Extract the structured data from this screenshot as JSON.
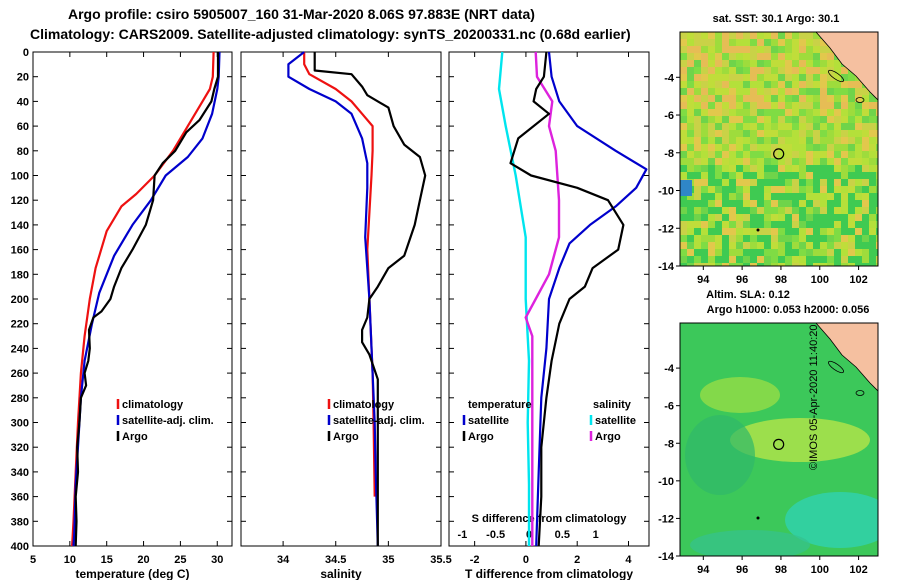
{
  "header": {
    "title_line1": "Argo profile: csiro 5905007_160 31-Mar-2020 8.06S 97.883E (NRT data)",
    "title_line2": "Climatology: CARS2009. Satellite-adjusted climatology: synTS_20200331.nc (0.68d earlier)"
  },
  "colors": {
    "climatology": "#ee1111",
    "satellite": "#0000cc",
    "argo": "#000000",
    "sat_salinity": "#00e5ee",
    "argo_salinity_diff": "#dd22dd"
  },
  "chart_data": [
    {
      "type": "line",
      "id": "temperature",
      "xlabel": "temperature (deg C)",
      "xlim": [
        5,
        32
      ],
      "xticks": [
        "5",
        "10",
        "15",
        "20",
        "25",
        "30"
      ],
      "xtick_values": [
        5,
        10,
        15,
        20,
        25,
        30
      ],
      "ylim": [
        400,
        0
      ],
      "yticks": [
        "0",
        "20",
        "40",
        "60",
        "80",
        "100",
        "120",
        "140",
        "160",
        "180",
        "200",
        "220",
        "240",
        "260",
        "280",
        "300",
        "320",
        "340",
        "360",
        "380",
        "400"
      ],
      "ytick_values": [
        0,
        20,
        40,
        60,
        80,
        100,
        120,
        140,
        160,
        180,
        200,
        220,
        240,
        260,
        280,
        300,
        320,
        340,
        360,
        380,
        400
      ],
      "legend": [
        "climatology",
        "satellite-adj. clim.",
        "Argo"
      ],
      "series": [
        {
          "name": "climatology",
          "color_key": "climatology",
          "points": [
            [
              29.5,
              0
            ],
            [
              29.4,
              20
            ],
            [
              29,
              30
            ],
            [
              28,
              40
            ],
            [
              26,
              60
            ],
            [
              24,
              80
            ],
            [
              21.5,
              100
            ],
            [
              19,
              115
            ],
            [
              17,
              125
            ],
            [
              15,
              145
            ],
            [
              13.5,
              175
            ],
            [
              12.7,
              200
            ],
            [
              12,
              230
            ],
            [
              11.5,
              260
            ],
            [
              11.1,
              300
            ],
            [
              10.8,
              340
            ],
            [
              10.5,
              380
            ],
            [
              10.3,
              400
            ]
          ]
        },
        {
          "name": "satellite-adj. clim.",
          "color_key": "satellite",
          "points": [
            [
              30.3,
              0
            ],
            [
              30.2,
              20
            ],
            [
              30,
              30
            ],
            [
              29.3,
              50
            ],
            [
              28,
              70
            ],
            [
              26,
              85
            ],
            [
              23,
              100
            ],
            [
              21,
              120
            ],
            [
              18.5,
              140
            ],
            [
              16,
              165
            ],
            [
              14,
              195
            ],
            [
              13,
              220
            ],
            [
              12,
              250
            ],
            [
              11.5,
              280
            ],
            [
              11.2,
              310
            ],
            [
              10.8,
              350
            ],
            [
              10.6,
              390
            ],
            [
              10.5,
              400
            ]
          ]
        },
        {
          "name": "Argo",
          "color_key": "argo",
          "points": [
            [
              30.1,
              0
            ],
            [
              30.1,
              20
            ],
            [
              29.6,
              30
            ],
            [
              29.2,
              40
            ],
            [
              27.6,
              55
            ],
            [
              25.8,
              65
            ],
            [
              24.3,
              80
            ],
            [
              22.6,
              90
            ],
            [
              21.5,
              100
            ],
            [
              21.3,
              120
            ],
            [
              20.3,
              140
            ],
            [
              18.5,
              160
            ],
            [
              17,
              175
            ],
            [
              16,
              190
            ],
            [
              15.5,
              200
            ],
            [
              14.3,
              210
            ],
            [
              13.2,
              215
            ],
            [
              12.6,
              225
            ],
            [
              12.7,
              240
            ],
            [
              12.5,
              250
            ],
            [
              12,
              260
            ],
            [
              12.2,
              270
            ],
            [
              11.5,
              280
            ],
            [
              11.3,
              300
            ],
            [
              11,
              320
            ],
            [
              11.1,
              340
            ],
            [
              10.8,
              360
            ],
            [
              10.9,
              380
            ],
            [
              10.8,
              400
            ]
          ]
        }
      ]
    },
    {
      "type": "line",
      "id": "salinity",
      "xlabel": "salinity",
      "xlim": [
        33.6,
        35.5
      ],
      "xticks": [
        "34",
        "34.5",
        "35",
        "35.5"
      ],
      "xtick_values": [
        34,
        34.5,
        35,
        35.5
      ],
      "ylim": [
        400,
        0
      ],
      "legend": [
        "climatology",
        "satellite-adj. clim.",
        "Argo"
      ],
      "series": [
        {
          "name": "climatology",
          "color_key": "climatology",
          "points": [
            [
              34.2,
              0
            ],
            [
              34.2,
              10
            ],
            [
              34.25,
              18
            ],
            [
              34.5,
              30
            ],
            [
              34.65,
              40
            ],
            [
              34.75,
              50
            ],
            [
              34.85,
              60
            ],
            [
              34.85,
              80
            ],
            [
              34.84,
              100
            ],
            [
              34.82,
              130
            ],
            [
              34.8,
              160
            ],
            [
              34.82,
              200
            ],
            [
              34.85,
              260
            ],
            [
              34.86,
              300
            ],
            [
              34.87,
              360
            ]
          ]
        },
        {
          "name": "satellite-adj. clim.",
          "color_key": "satellite",
          "points": [
            [
              34.2,
              0
            ],
            [
              34.05,
              10
            ],
            [
              34.05,
              20
            ],
            [
              34.25,
              30
            ],
            [
              34.5,
              40
            ],
            [
              34.65,
              50
            ],
            [
              34.75,
              70
            ],
            [
              34.8,
              90
            ],
            [
              34.8,
              110
            ],
            [
              34.78,
              150
            ],
            [
              34.82,
              200
            ],
            [
              34.85,
              260
            ],
            [
              34.87,
              300
            ],
            [
              34.88,
              340
            ],
            [
              34.9,
              400
            ]
          ]
        },
        {
          "name": "Argo",
          "color_key": "argo",
          "points": [
            [
              34.3,
              0
            ],
            [
              34.3,
              15
            ],
            [
              34.65,
              18
            ],
            [
              34.75,
              28
            ],
            [
              34.8,
              35
            ],
            [
              35.0,
              45
            ],
            [
              35.05,
              60
            ],
            [
              35.15,
              75
            ],
            [
              35.3,
              85
            ],
            [
              35.35,
              100
            ],
            [
              35.3,
              120
            ],
            [
              35.25,
              140
            ],
            [
              35.15,
              165
            ],
            [
              35.0,
              175
            ],
            [
              34.9,
              190
            ],
            [
              34.82,
              200
            ],
            [
              34.8,
              215
            ],
            [
              34.75,
              225
            ],
            [
              34.75,
              235
            ],
            [
              34.82,
              245
            ],
            [
              34.9,
              265
            ],
            [
              34.9,
              300
            ],
            [
              34.9,
              340
            ],
            [
              34.9,
              380
            ],
            [
              34.9,
              400
            ]
          ]
        }
      ]
    },
    {
      "type": "line",
      "id": "difference",
      "xlabel": "T difference from climatology",
      "xlim": [
        -3,
        4.8
      ],
      "xticks": [
        "-2",
        "0",
        "2",
        "4"
      ],
      "xtick_values": [
        -2,
        0,
        2,
        4
      ],
      "top_xlabel": "S difference from climatology",
      "top_xlim": [
        -1.2,
        1.8
      ],
      "top_xticks": [
        "-1",
        "-0.5",
        "0",
        "0.5",
        "1"
      ],
      "top_xtick_values": [
        -1,
        -0.5,
        0,
        0.5,
        1
      ],
      "ylim": [
        400,
        0
      ],
      "legend_left_title": "temperature",
      "legend_right_title": "salinity",
      "legend_left": [
        "satellite",
        "Argo"
      ],
      "legend_right": [
        "satellite",
        "Argo"
      ],
      "t_series": [
        {
          "name": "T satellite",
          "color_key": "satellite",
          "points": [
            [
              0.9,
              0
            ],
            [
              1.0,
              20
            ],
            [
              1.3,
              40
            ],
            [
              2.0,
              60
            ],
            [
              3.5,
              80
            ],
            [
              4.7,
              95
            ],
            [
              4.3,
              110
            ],
            [
              3.5,
              125
            ],
            [
              2.5,
              140
            ],
            [
              1.7,
              155
            ],
            [
              1.3,
              175
            ],
            [
              0.9,
              200
            ],
            [
              0.8,
              240
            ],
            [
              0.6,
              280
            ],
            [
              0.5,
              340
            ],
            [
              0.4,
              400
            ]
          ]
        },
        {
          "name": "T Argo",
          "color_key": "argo",
          "points": [
            [
              0.8,
              0
            ],
            [
              0.7,
              20
            ],
            [
              0.4,
              30
            ],
            [
              0.3,
              40
            ],
            [
              0.9,
              50
            ],
            [
              -0.3,
              70
            ],
            [
              -0.6,
              90
            ],
            [
              0.2,
              100
            ],
            [
              2.0,
              110
            ],
            [
              3.2,
              120
            ],
            [
              3.8,
              140
            ],
            [
              3.6,
              160
            ],
            [
              2.6,
              175
            ],
            [
              2.3,
              190
            ],
            [
              1.7,
              200
            ],
            [
              1.3,
              220
            ],
            [
              1.0,
              250
            ],
            [
              0.8,
              280
            ],
            [
              0.6,
              320
            ],
            [
              0.6,
              360
            ],
            [
              0.5,
              400
            ]
          ]
        }
      ],
      "s_series": [
        {
          "name": "S satellite",
          "color_key": "sat_salinity",
          "points": [
            [
              -0.4,
              0
            ],
            [
              -0.45,
              30
            ],
            [
              -0.35,
              60
            ],
            [
              -0.2,
              100
            ],
            [
              -0.05,
              150
            ],
            [
              -0.05,
              200
            ],
            [
              0.0,
              250
            ],
            [
              -0.02,
              300
            ],
            [
              0.0,
              350
            ],
            [
              0.0,
              400
            ]
          ]
        },
        {
          "name": "S Argo",
          "color_key": "argo_salinity_diff",
          "points": [
            [
              0.1,
              0
            ],
            [
              0.12,
              20
            ],
            [
              0.35,
              40
            ],
            [
              0.3,
              60
            ],
            [
              0.4,
              80
            ],
            [
              0.45,
              120
            ],
            [
              0.45,
              150
            ],
            [
              0.3,
              180
            ],
            [
              0.1,
              200
            ],
            [
              -0.05,
              215
            ],
            [
              0.05,
              230
            ],
            [
              0.05,
              260
            ],
            [
              0.05,
              300
            ],
            [
              0.05,
              350
            ],
            [
              0.05,
              400
            ]
          ]
        }
      ]
    },
    {
      "type": "heatmap",
      "id": "sst_map",
      "title": "sat. SST: 30.1  Argo: 30.1",
      "xlim": [
        92.8,
        103
      ],
      "ylim": [
        -14,
        -1.6
      ],
      "xticks": [
        "94",
        "96",
        "98",
        "100",
        "102"
      ],
      "xtick_values": [
        94,
        96,
        98,
        100,
        102
      ],
      "yticks": [
        "-4",
        "-6",
        "-8",
        "-10",
        "-12",
        "-14"
      ],
      "ytick_values": [
        -4,
        -6,
        -8,
        -10,
        -12,
        -14
      ],
      "argo_position": [
        97.883,
        -8.06
      ]
    },
    {
      "type": "heatmap",
      "id": "sla_map",
      "title": "Altim. SLA: 0.12",
      "subtitle": "Argo h1000: 0.053 h2000: 0.056",
      "xlim": [
        92.8,
        103
      ],
      "ylim": [
        -14,
        -1.6
      ],
      "xticks": [
        "94",
        "96",
        "98",
        "100",
        "102"
      ],
      "xtick_values": [
        94,
        96,
        98,
        100,
        102
      ],
      "yticks": [
        "-4",
        "-6",
        "-8",
        "-10",
        "-12",
        "-14"
      ],
      "ytick_values": [
        -4,
        -6,
        -8,
        -10,
        -12,
        -14
      ],
      "argo_position": [
        97.883,
        -8.06
      ]
    }
  ],
  "footer": {
    "stamp": "©IMOS 05-Apr-2020 11:40:20"
  }
}
